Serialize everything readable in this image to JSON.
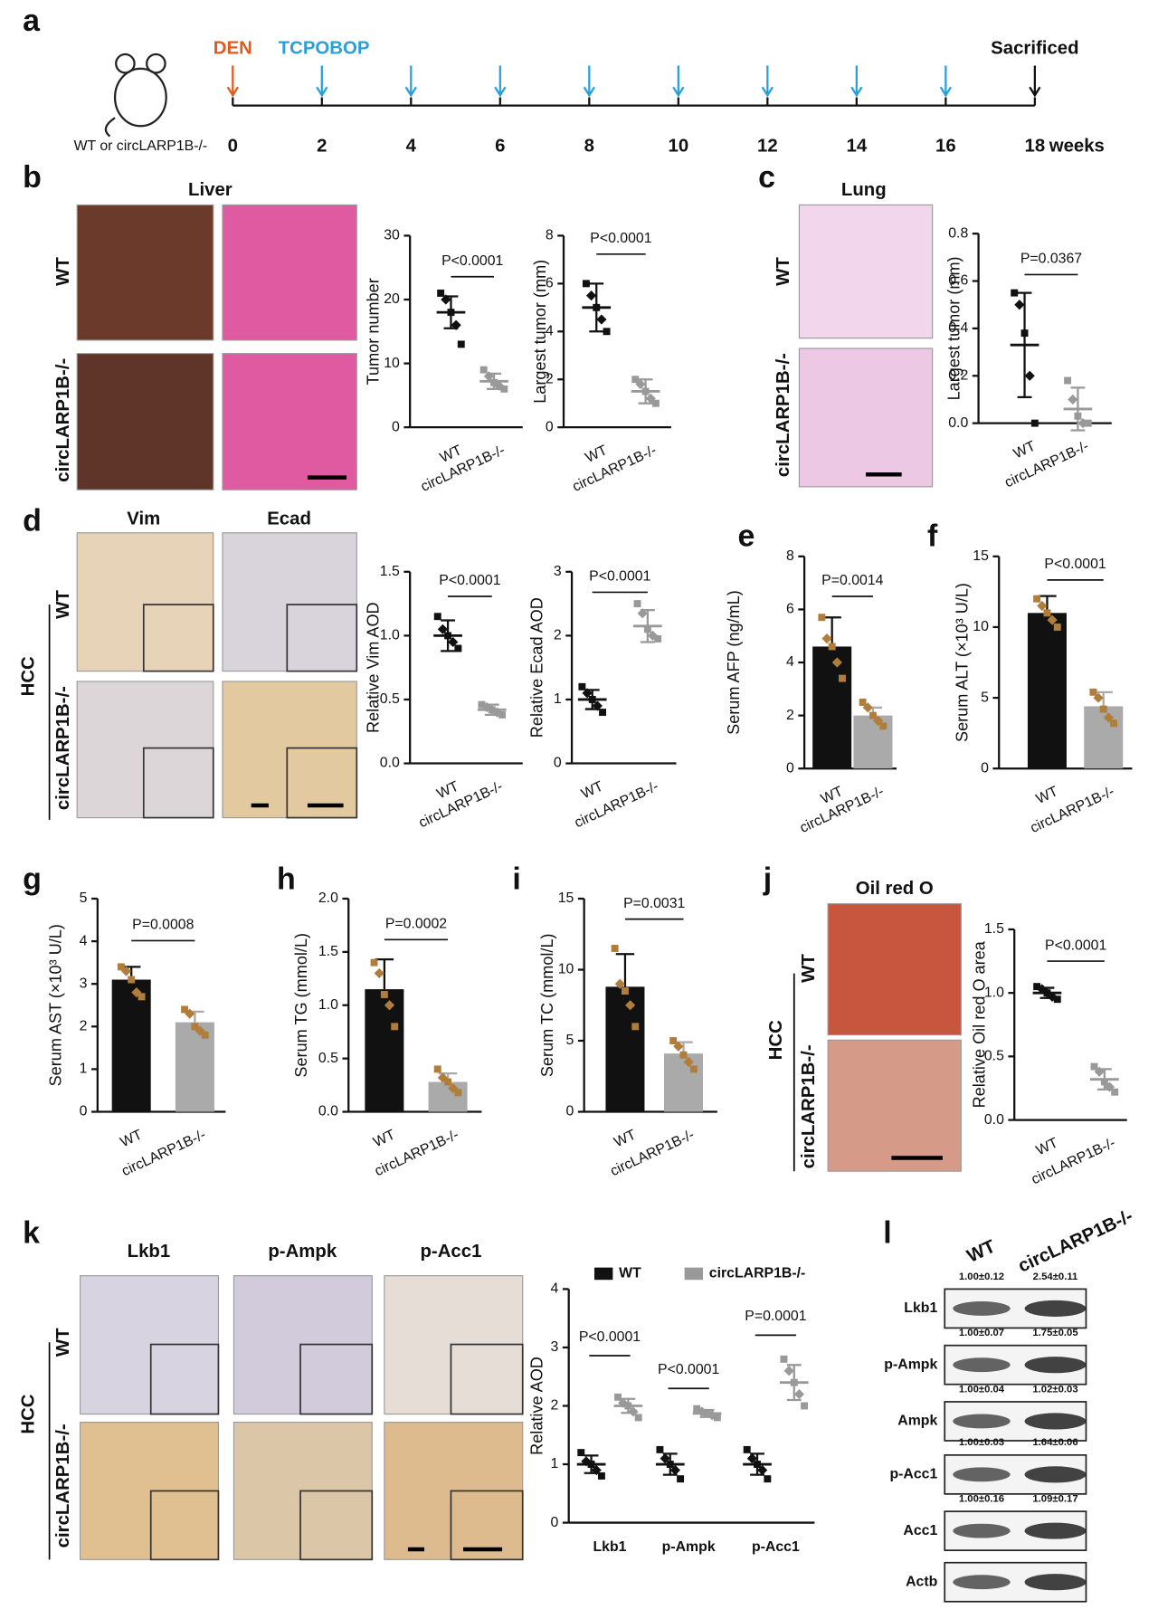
{
  "panel_labels": [
    "a",
    "b",
    "c",
    "d",
    "e",
    "f",
    "g",
    "h",
    "i",
    "j",
    "k",
    "l"
  ],
  "timeline": {
    "x": [
      0,
      2,
      4,
      6,
      8,
      10,
      12,
      14,
      16,
      18
    ],
    "unit": "weeks",
    "group_label": "WT or circLARP1B-/-",
    "events": [
      {
        "label": "DEN",
        "color": "#e05a1e",
        "at": [
          0
        ]
      },
      {
        "label": "TCPOBOP",
        "color": "#2aa0d8",
        "at": [
          2,
          4,
          6,
          8,
          10,
          12,
          14,
          16
        ]
      },
      {
        "label": "Sacrificed",
        "color": "#111111",
        "at": [
          18
        ]
      }
    ]
  },
  "image_panels": {
    "b": {
      "title": "Liver",
      "rows": [
        "WT",
        "circLARP1B-/-"
      ]
    },
    "c": {
      "title": "Lung",
      "rows": [
        "WT",
        "circLARP1B-/-"
      ]
    },
    "d": {
      "columns": [
        "Vim",
        "Ecad"
      ],
      "group": "HCC",
      "rows": [
        "WT",
        "circLARP1B-/-"
      ]
    },
    "j": {
      "title": "Oil red O",
      "group": "HCC",
      "rows": [
        "WT",
        "circLARP1B-/-"
      ]
    },
    "k": {
      "columns": [
        "Lkb1",
        "p-Ampk",
        "p-Acc1"
      ],
      "group": "HCC",
      "rows": [
        "WT",
        "circLARP1B-/-"
      ]
    }
  },
  "chart_data": [
    {
      "type": "dot",
      "ylabel": "Tumor number",
      "categories": [
        "WT",
        "circLARP1B-/-"
      ],
      "colors": [
        "#111111",
        "#999999"
      ],
      "values": [
        18,
        7.2
      ],
      "errors": [
        2.5,
        1.2
      ],
      "points": [
        [
          21,
          20,
          18,
          16,
          13
        ],
        [
          9,
          8,
          7,
          6.5,
          6
        ]
      ],
      "ylim": [
        0,
        30
      ],
      "yticks": [
        0,
        10,
        20,
        30
      ],
      "annotation": "P<0.0001"
    },
    {
      "type": "dot",
      "ylabel": "Largest tumor (mm)",
      "categories": [
        "WT",
        "circLARP1B-/-"
      ],
      "colors": [
        "#111111",
        "#999999"
      ],
      "values": [
        5,
        1.5
      ],
      "errors": [
        1,
        0.5
      ],
      "points": [
        [
          6,
          5.5,
          5,
          4.5,
          4
        ],
        [
          2,
          1.8,
          1.5,
          1.2,
          1
        ]
      ],
      "ylim": [
        0,
        8
      ],
      "yticks": [
        0,
        2,
        4,
        6,
        8
      ],
      "annotation": "P<0.0001"
    },
    {
      "type": "dot",
      "ylabel": "Largest tumor (mm)",
      "categories": [
        "WT",
        "circLARP1B-/-"
      ],
      "colors": [
        "#111111",
        "#999999"
      ],
      "values": [
        0.33,
        0.06
      ],
      "errors": [
        0.22,
        0.09
      ],
      "points": [
        [
          0.55,
          0.5,
          0.38,
          0.2,
          0
        ],
        [
          0.18,
          0.1,
          0.03,
          0,
          0
        ]
      ],
      "ylim": [
        0,
        0.8
      ],
      "yticks": [
        {
          "value": 0,
          "label": "0.0"
        },
        0.2,
        0.4,
        0.6,
        0.8
      ],
      "annotation": "P=0.0367"
    },
    {
      "type": "dot",
      "ylabel": "Relative Vim AOD",
      "categories": [
        "WT",
        "circLARP1B-/-"
      ],
      "colors": [
        "#111111",
        "#999999"
      ],
      "values": [
        1,
        0.42
      ],
      "errors": [
        0.12,
        0.04
      ],
      "points": [
        [
          1.15,
          1.05,
          1,
          0.95,
          0.9
        ],
        [
          0.46,
          0.44,
          0.42,
          0.4,
          0.38
        ]
      ],
      "ylim": [
        0,
        1.5
      ],
      "yticks": [
        {
          "value": 0,
          "label": "0.0"
        },
        0.5,
        {
          "value": 1,
          "label": "1.0"
        },
        1.5
      ],
      "annotation": "P<0.0001"
    },
    {
      "type": "dot",
      "ylabel": "Relative Ecad AOD",
      "categories": [
        "WT",
        "circLARP1B-/-"
      ],
      "colors": [
        "#111111",
        "#999999"
      ],
      "values": [
        1,
        2.15
      ],
      "errors": [
        0.15,
        0.25
      ],
      "points": [
        [
          1.2,
          1.1,
          1,
          0.9,
          0.8
        ],
        [
          2.5,
          2.35,
          2.1,
          2,
          1.95
        ]
      ],
      "ylim": [
        0,
        3
      ],
      "yticks": [
        0,
        1,
        2,
        3
      ],
      "annotation": "P<0.0001"
    },
    {
      "type": "bar",
      "ylabel": "Serum AFP (ng/mL)",
      "categories": [
        "WT",
        "circLARP1B-/-"
      ],
      "colors": [
        "#111111",
        "#aaaaaa"
      ],
      "point_color": "#b07d3a",
      "values": [
        4.6,
        2
      ],
      "errors": [
        1.1,
        0.3
      ],
      "points": [
        [
          5.7,
          4.9,
          4.6,
          4,
          3.4
        ],
        [
          2.5,
          2.3,
          2,
          1.8,
          1.6
        ]
      ],
      "ylim": [
        0,
        8
      ],
      "yticks": [
        0,
        2,
        4,
        6,
        8
      ],
      "annotation": "P=0.0014"
    },
    {
      "type": "bar",
      "ylabel": "Serum ALT (×10³ U/L)",
      "categories": [
        "WT",
        "circLARP1B-/-"
      ],
      "colors": [
        "#111111",
        "#aaaaaa"
      ],
      "point_color": "#b07d3a",
      "values": [
        11,
        4.4
      ],
      "errors": [
        1.2,
        1
      ],
      "points": [
        [
          12,
          11.5,
          11,
          10.5,
          10
        ],
        [
          5.4,
          5,
          4.2,
          3.6,
          3.2
        ]
      ],
      "ylim": [
        0,
        15
      ],
      "yticks": [
        0,
        5,
        10,
        15
      ],
      "annotation": "P<0.0001"
    },
    {
      "type": "bar",
      "ylabel": "Serum AST (×10³ U/L)",
      "categories": [
        "WT",
        "circLARP1B-/-"
      ],
      "colors": [
        "#111111",
        "#aaaaaa"
      ],
      "point_color": "#b07d3a",
      "values": [
        3.1,
        2.1
      ],
      "errors": [
        0.3,
        0.25
      ],
      "points": [
        [
          3.4,
          3.3,
          3.1,
          2.8,
          2.7
        ],
        [
          2.4,
          2.3,
          2,
          1.9,
          1.8
        ]
      ],
      "ylim": [
        0,
        5
      ],
      "yticks": [
        0,
        1,
        2,
        3,
        4,
        5
      ],
      "annotation": "P=0.0008"
    },
    {
      "type": "bar",
      "ylabel": "Serum TG (mmol/L)",
      "categories": [
        "WT",
        "circLARP1B-/-"
      ],
      "colors": [
        "#111111",
        "#aaaaaa"
      ],
      "point_color": "#b07d3a",
      "values": [
        1.15,
        0.28
      ],
      "errors": [
        0.28,
        0.08
      ],
      "points": [
        [
          1.4,
          1.3,
          1.1,
          1,
          0.8
        ],
        [
          0.4,
          0.32,
          0.28,
          0.22,
          0.18
        ]
      ],
      "ylim": [
        0,
        2
      ],
      "yticks": [
        {
          "value": 0,
          "label": "0.0"
        },
        0.5,
        {
          "value": 1,
          "label": "1.0"
        },
        1.5,
        {
          "value": 2,
          "label": "2.0"
        }
      ],
      "annotation": "P=0.0002"
    },
    {
      "type": "bar",
      "ylabel": "Serum TC (mmol/L)",
      "categories": [
        "WT",
        "circLARP1B-/-"
      ],
      "colors": [
        "#111111",
        "#aaaaaa"
      ],
      "point_color": "#b07d3a",
      "values": [
        8.8,
        4.1
      ],
      "errors": [
        2.3,
        0.8
      ],
      "points": [
        [
          11.5,
          9,
          8.5,
          7.5,
          6
        ],
        [
          5,
          4.6,
          4,
          3.5,
          3
        ]
      ],
      "ylim": [
        0,
        15
      ],
      "yticks": [
        0,
        5,
        10,
        15
      ],
      "annotation": "P=0.0031"
    },
    {
      "type": "dot",
      "ylabel": "Relative Oil red O area",
      "categories": [
        "WT",
        "circLARP1B-/-"
      ],
      "colors": [
        "#111111",
        "#999999"
      ],
      "values": [
        1,
        0.32
      ],
      "errors": [
        0.04,
        0.08
      ],
      "points": [
        [
          1.05,
          1.03,
          1,
          0.97,
          0.95
        ],
        [
          0.42,
          0.38,
          0.3,
          0.26,
          0.22
        ]
      ],
      "ylim": [
        0,
        1.5
      ],
      "yticks": [
        {
          "value": 0,
          "label": "0.0"
        },
        0.5,
        {
          "value": 1,
          "label": "1.0"
        },
        1.5
      ],
      "annotation": "P<0.0001"
    },
    {
      "type": "dot",
      "ylabel": "Relative AOD",
      "categories": [
        "Lkb1",
        "p-Ampk",
        "p-Acc1"
      ],
      "ylim": [
        0,
        4
      ],
      "yticks": [
        0,
        1,
        2,
        3,
        4
      ],
      "annotations": [
        "P<0.0001",
        "P<0.0001",
        "P=0.0001"
      ],
      "series": [
        {
          "name": "WT",
          "color": "#111111",
          "values": [
            1,
            1,
            1
          ],
          "errors": [
            0.15,
            0.18,
            0.18
          ],
          "points": [
            [
              1.2,
              1.05,
              1,
              0.9,
              0.8
            ],
            [
              1.25,
              1.1,
              1,
              0.9,
              0.75
            ],
            [
              1.25,
              1.1,
              1,
              0.9,
              0.75
            ]
          ]
        },
        {
          "name": "circLARP1B-/-",
          "color": "#999999",
          "values": [
            2,
            1.87,
            2.4
          ],
          "errors": [
            0.12,
            0.06,
            0.3
          ],
          "points": [
            [
              2.15,
              2.05,
              2,
              1.9,
              1.8
            ],
            [
              1.95,
              1.9,
              1.87,
              1.84,
              1.8
            ],
            [
              2.8,
              2.6,
              2.4,
              2.2,
              2
            ]
          ]
        }
      ]
    }
  ],
  "western_blot": {
    "samples": [
      "WT",
      "circLARP1B-/-"
    ],
    "rows": [
      {
        "label": "Lkb1",
        "quant": [
          "1.00±0.12",
          "2.54±0.11"
        ]
      },
      {
        "label": "p-Ampk",
        "quant": [
          "1.00±0.07",
          "1.75±0.05"
        ]
      },
      {
        "label": "Ampk",
        "quant": [
          "1.00±0.04",
          "1.02±0.03"
        ]
      },
      {
        "label": "p-Acc1",
        "quant": [
          "1.00±0.03",
          "1.64±0.06"
        ]
      },
      {
        "label": "Acc1",
        "quant": [
          "1.00±0.16",
          "1.09±0.17"
        ]
      },
      {
        "label": "Actb"
      }
    ]
  }
}
